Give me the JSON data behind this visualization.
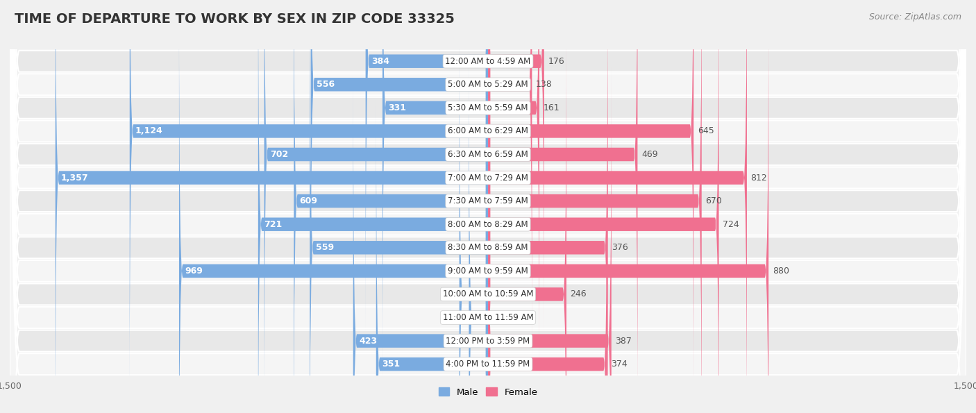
{
  "title": "TIME OF DEPARTURE TO WORK BY SEX IN ZIP CODE 33325",
  "source": "Source: ZipAtlas.com",
  "categories": [
    "12:00 AM to 4:59 AM",
    "5:00 AM to 5:29 AM",
    "5:30 AM to 5:59 AM",
    "6:00 AM to 6:29 AM",
    "6:30 AM to 6:59 AM",
    "7:00 AM to 7:29 AM",
    "7:30 AM to 7:59 AM",
    "8:00 AM to 8:29 AM",
    "8:30 AM to 8:59 AM",
    "9:00 AM to 9:59 AM",
    "10:00 AM to 10:59 AM",
    "11:00 AM to 11:59 AM",
    "12:00 PM to 3:59 PM",
    "4:00 PM to 11:59 PM"
  ],
  "male": [
    384,
    556,
    331,
    1124,
    702,
    1357,
    609,
    721,
    559,
    969,
    90,
    60,
    423,
    351
  ],
  "female": [
    176,
    138,
    161,
    645,
    469,
    812,
    670,
    724,
    376,
    880,
    246,
    0,
    387,
    374
  ],
  "male_color": "#7aabe0",
  "female_color": "#f07090",
  "label_inside_color": "#ffffff",
  "label_outside_color": "#555555",
  "bg_color": "#f0f0f0",
  "row_bg_even": "#e8e8e8",
  "row_bg_odd": "#f5f5f5",
  "bar_track_color": "#e0e0e0",
  "center_label_bg": "#ffffff",
  "max_val": 1500,
  "bar_height": 0.58,
  "title_fontsize": 14,
  "label_fontsize": 9,
  "axis_fontsize": 9,
  "source_fontsize": 9,
  "inside_threshold": 300
}
